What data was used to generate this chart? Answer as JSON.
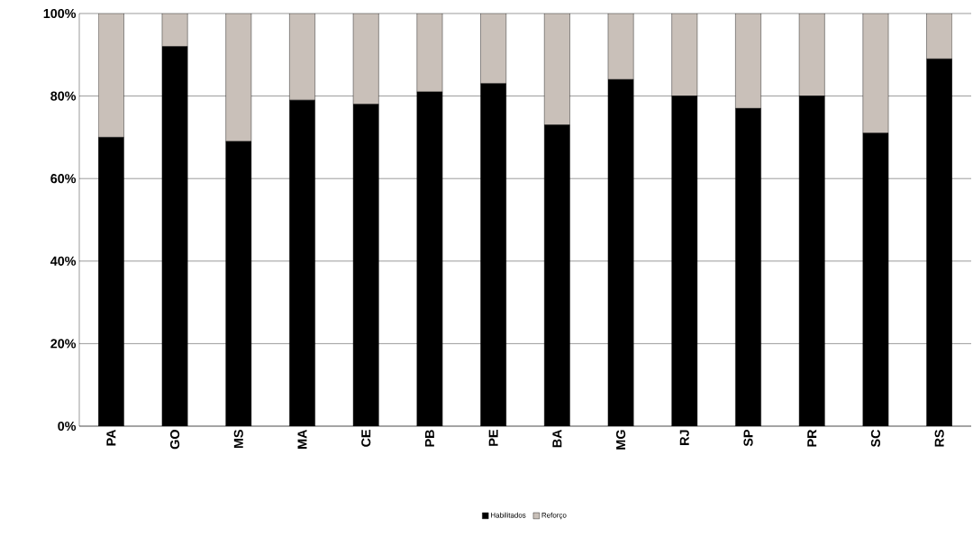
{
  "chart_data": {
    "type": "bar",
    "stacked": true,
    "categories": [
      "PA",
      "GO",
      "MS",
      "MA",
      "CE",
      "PB",
      "PE",
      "BA",
      "MG",
      "RJ",
      "SP",
      "PR",
      "SC",
      "RS"
    ],
    "series": [
      {
        "name": "Habilitados",
        "color": "#000000",
        "values": [
          70,
          92,
          69,
          79,
          78,
          81,
          83,
          73,
          84,
          80,
          77,
          80,
          71,
          89
        ]
      },
      {
        "name": "Reforço",
        "color": "#c9c0b9",
        "values": [
          30,
          8,
          31,
          21,
          22,
          19,
          17,
          27,
          16,
          20,
          23,
          20,
          29,
          11
        ]
      }
    ],
    "ylim": [
      0,
      100
    ],
    "yticks": [
      {
        "value": 0,
        "label": "0%"
      },
      {
        "value": 20,
        "label": "20%"
      },
      {
        "value": 40,
        "label": "40%"
      },
      {
        "value": 60,
        "label": "60%"
      },
      {
        "value": 80,
        "label": "80%"
      },
      {
        "value": 100,
        "label": "100%"
      }
    ],
    "grid": "y",
    "legend": "bottom"
  }
}
